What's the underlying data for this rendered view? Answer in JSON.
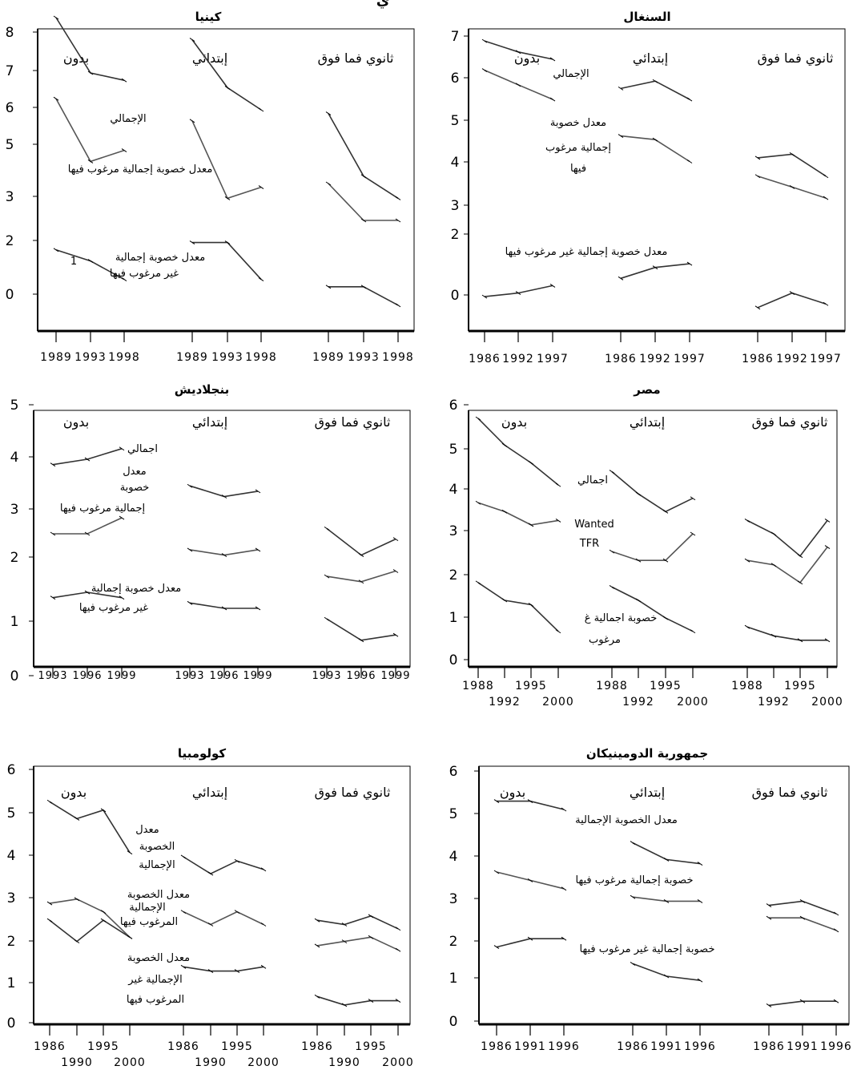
{
  "figure": {
    "top_title": "ي"
  },
  "chart_data": [
    {
      "type": "line",
      "title": "كينيا",
      "ylim": [
        -1,
        8
      ],
      "y_ticks": [
        "8",
        "7",
        "6",
        "5",
        "3",
        "2",
        "0"
      ],
      "groups": [
        {
          "label": "بدون",
          "x": [
            1989,
            1993,
            1998
          ],
          "tick_labels": [
            "1989",
            "1993",
            "1998"
          ]
        },
        {
          "label": "إبتدائي",
          "x": [
            1989,
            1993,
            1998
          ],
          "tick_labels": [
            "1989",
            "1993",
            "1998"
          ]
        },
        {
          "label": "ثانوي فما فوق",
          "x": [
            1989,
            1993,
            1998
          ],
          "tick_labels": [
            "1989",
            "1993",
            "1998"
          ]
        }
      ],
      "series": [
        {
          "name": "الإجمالي",
          "values": [
            [
              7.5,
              6.0,
              5.8
            ],
            [
              6.9,
              5.6,
              5.0
            ],
            [
              4.9,
              3.2,
              2.6
            ]
          ]
        },
        {
          "name": "معدل خصوبة إجمالية مرغوب فيها",
          "values": [
            [
              5.3,
              3.6,
              3.9
            ],
            [
              4.7,
              2.6,
              2.9
            ],
            [
              3.0,
              2.0,
              2.0
            ]
          ]
        },
        {
          "name": "معدل خصوبة إجمالية غير مرغوب فيها",
          "values": [
            [
              1.2,
              0.9,
              0.4
            ],
            [
              1.4,
              1.4,
              0.4
            ],
            [
              0.2,
              0.2,
              -0.3
            ]
          ]
        }
      ],
      "annotations": [
        "الإجمالي",
        "معدل خصوبة إجمالية مرغوب فيها",
        "1",
        "معدل خصوبة إجمالية",
        "غير مرغوب فيها"
      ]
    },
    {
      "type": "line",
      "title": "السنغال",
      "ylim": [
        -1,
        7
      ],
      "y_ticks": [
        "7",
        "6",
        "5",
        "4",
        "3",
        "2",
        "0"
      ],
      "groups": [
        {
          "label": "بدون",
          "x": [
            1986,
            1992,
            1997
          ],
          "tick_labels": [
            "1986",
            "1992",
            "1997"
          ]
        },
        {
          "label": "إبتدائي",
          "x": [
            1986,
            1992,
            1997
          ],
          "tick_labels": [
            "1986",
            "1992",
            "1997"
          ]
        },
        {
          "label": "ثانوي فما فوق",
          "x": [
            1986,
            1992,
            1997
          ],
          "tick_labels": [
            "1986",
            "1992",
            "1997"
          ]
        }
      ],
      "series": [
        {
          "name": "الإجمالي",
          "values": [
            [
              6.8,
              6.5,
              6.3
            ],
            [
              5.5,
              5.7,
              5.2
            ],
            [
              3.6,
              3.7,
              3.1
            ]
          ]
        },
        {
          "name": "معدل خصوبة إجمالية مرغوب فيها",
          "values": [
            [
              6.0,
              5.6,
              5.2
            ],
            [
              4.2,
              4.1,
              3.5
            ],
            [
              3.1,
              2.8,
              2.5
            ]
          ]
        },
        {
          "name": "معدل خصوبة إجمالية غير مرغوب فيها",
          "values": [
            [
              -0.2,
              -0.1,
              0.1
            ],
            [
              0.3,
              0.6,
              0.7
            ],
            [
              -0.5,
              -0.1,
              -0.4
            ]
          ]
        }
      ],
      "annotations": [
        "الإجمالي",
        "معدل خصوبة",
        "إجمالية مرغوب",
        "فيها",
        "معدل خصوبة إجمالية غير مرغوب فيها"
      ]
    },
    {
      "type": "line",
      "title": "بنجلاديش",
      "ylim": [
        0,
        5
      ],
      "y_ticks": [
        "5",
        "4",
        "3",
        "2",
        "1",
        "0"
      ],
      "groups": [
        {
          "label": "بدون",
          "x": [
            1993,
            1996,
            1999
          ],
          "tick_labels": [
            "1993",
            "1996",
            "1999"
          ]
        },
        {
          "label": "إبتدائي",
          "x": [
            1993,
            1996,
            1999
          ],
          "tick_labels": [
            "1993",
            "1996",
            "1999"
          ]
        },
        {
          "label": "ثانوي فما فوق",
          "x": [
            1993,
            1996,
            1999
          ],
          "tick_labels": [
            "1993",
            "1996",
            "1999"
          ]
        }
      ],
      "series": [
        {
          "name": "إجمالي",
          "values": [
            [
              3.8,
              3.9,
              4.1
            ],
            [
              3.4,
              3.2,
              3.3
            ],
            [
              2.6,
              2.1,
              2.4
            ]
          ]
        },
        {
          "name": "معدل خصوبة إجمالية مرغوب فيها",
          "values": [
            [
              2.5,
              2.5,
              2.8
            ],
            [
              2.2,
              2.1,
              2.2
            ],
            [
              1.7,
              1.6,
              1.8
            ]
          ]
        },
        {
          "name": "معدل خصوبة إجمالية غير مرغوب فيها",
          "values": [
            [
              1.3,
              1.4,
              1.3
            ],
            [
              1.2,
              1.1,
              1.1
            ],
            [
              0.9,
              0.5,
              0.6
            ]
          ]
        }
      ],
      "annotations": [
        "اجمالي",
        "معدل",
        "خصوبة",
        "إجمالية مرغوب فيها",
        "معدل خصوبة إجمالية",
        "غير مرغوب فيها"
      ]
    },
    {
      "type": "line",
      "title": "مصر",
      "ylim": [
        0,
        6
      ],
      "y_ticks": [
        "6",
        "5",
        "4",
        "3",
        "2",
        "1",
        "0"
      ],
      "groups": [
        {
          "label": "بدون",
          "x": [
            1988,
            1992,
            1995,
            2000
          ],
          "tick_labels": [
            "1988",
            "1992",
            "1995",
            "2000"
          ]
        },
        {
          "label": "إبتدائي",
          "x": [
            1988,
            1992,
            1995,
            2000
          ],
          "tick_labels": [
            "1988",
            "1992",
            "1995",
            "2000"
          ]
        },
        {
          "label": "ثانوي فما فوق",
          "x": [
            1988,
            1992,
            1995,
            2000
          ],
          "tick_labels": [
            "1988",
            "1992",
            "1995",
            "2000"
          ]
        }
      ],
      "series": [
        {
          "name": "اجمالي",
          "values": [
            [
              5.6,
              5.0,
              4.6,
              4.1
            ],
            [
              4.4,
              3.9,
              3.5,
              3.8
            ],
            [
              3.3,
              3.0,
              2.5,
              3.3
            ]
          ]
        },
        {
          "name": "Wanted TFR",
          "values": [
            [
              3.7,
              3.5,
              3.2,
              3.3
            ],
            [
              2.6,
              2.4,
              2.4,
              3.0
            ],
            [
              2.4,
              2.3,
              1.9,
              2.7
            ]
          ]
        },
        {
          "name": "خصوبة اجمالية غير مرغوب",
          "values": [
            [
              1.9,
              1.5,
              1.4,
              0.8
            ],
            [
              1.8,
              1.5,
              1.1,
              0.8
            ],
            [
              0.9,
              0.7,
              0.6,
              0.6
            ]
          ]
        }
      ],
      "annotations": [
        "اجمالي",
        "Wanted",
        "TFR",
        "خصوبة اجمالية غ",
        "مرغوب"
      ]
    },
    {
      "type": "line",
      "title": "كولومبيا",
      "ylim": [
        0,
        6
      ],
      "y_ticks": [
        "6",
        "5",
        "4",
        "3",
        "2",
        "1",
        "0"
      ],
      "groups": [
        {
          "label": "بدون",
          "x": [
            1986,
            1990,
            1995,
            2000
          ],
          "tick_labels": [
            "1986",
            "1990",
            "1995",
            "2000"
          ]
        },
        {
          "label": "إبتدائي",
          "x": [
            1986,
            1990,
            1995,
            2000
          ],
          "tick_labels": [
            "1986",
            "1990",
            "1995",
            "2000"
          ]
        },
        {
          "label": "ثانوي فما فوق",
          "x": [
            1986,
            1990,
            1995,
            2000
          ],
          "tick_labels": [
            "1986",
            "1990",
            "1995",
            "2000"
          ]
        }
      ],
      "series": [
        {
          "name": "معدل الخصوبة الإجمالية",
          "values": [
            [
              5.2,
              4.8,
              5.0,
              4.0
            ],
            [
              3.9,
              3.5,
              3.8,
              3.6
            ],
            [
              2.4,
              2.3,
              2.5,
              2.2
            ]
          ]
        },
        {
          "name": "معدل الخصوبة الإجمالية المرغوب فيها",
          "values": [
            [
              2.8,
              2.9,
              2.6,
              2.0
            ],
            [
              2.6,
              2.3,
              2.6,
              2.3
            ],
            [
              1.8,
              1.9,
              2.0,
              1.7
            ]
          ]
        },
        {
          "name": "معدل الخصوبة الإجمالية غير المرغوب فيها",
          "values": [
            [
              2.4,
              1.9,
              2.4,
              2.0
            ],
            [
              1.3,
              1.2,
              1.2,
              1.3
            ],
            [
              0.6,
              0.4,
              0.5,
              0.5
            ]
          ]
        }
      ],
      "annotations": [
        "معدل",
        "الخصوبة",
        "الإجمالية",
        "معدل الخصوبة",
        "الإجمالية",
        "المرغوب فيها",
        "معدل الخصوبة",
        "الإجمالية غير",
        "المرغوب فيها"
      ]
    },
    {
      "type": "line",
      "title": "جمهورية الدومينيكان",
      "ylim": [
        0,
        6
      ],
      "y_ticks": [
        "6",
        "5",
        "4",
        "3",
        "2",
        "1",
        "0"
      ],
      "groups": [
        {
          "label": "بدون",
          "x": [
            1986,
            1991,
            1996
          ],
          "tick_labels": [
            "1986",
            "1991",
            "1996"
          ]
        },
        {
          "label": "إبتدائي",
          "x": [
            1986,
            1991,
            1996
          ],
          "tick_labels": [
            "1986",
            "1991",
            "1996"
          ]
        },
        {
          "label": "ثانوي فما فوق",
          "x": [
            1986,
            1991,
            1996
          ],
          "tick_labels": [
            "1986",
            "1991",
            "1996"
          ]
        }
      ],
      "series": [
        {
          "name": "معدل الخصوبة الإجمالية",
          "values": [
            [
              5.2,
              5.2,
              5.0
            ],
            [
              4.2,
              3.8,
              3.7
            ],
            [
              2.7,
              2.8,
              2.5
            ]
          ]
        },
        {
          "name": "خصوبة إجمالية مرغوب فيها",
          "values": [
            [
              3.5,
              3.3,
              3.1
            ],
            [
              2.9,
              2.8,
              2.8
            ],
            [
              2.4,
              2.4,
              2.1
            ]
          ]
        },
        {
          "name": "خصوبة إجمالية غير مرغوب فيها",
          "values": [
            [
              1.7,
              1.9,
              1.9
            ],
            [
              1.3,
              1.0,
              0.9
            ],
            [
              0.3,
              0.4,
              0.4
            ]
          ]
        }
      ],
      "annotations": [
        "معدل الخصوبة الإجمالية",
        "خصوبة إجمالية مرغوب فيها",
        "خصوبة إجمالية غير مرغوب فيها"
      ]
    }
  ]
}
